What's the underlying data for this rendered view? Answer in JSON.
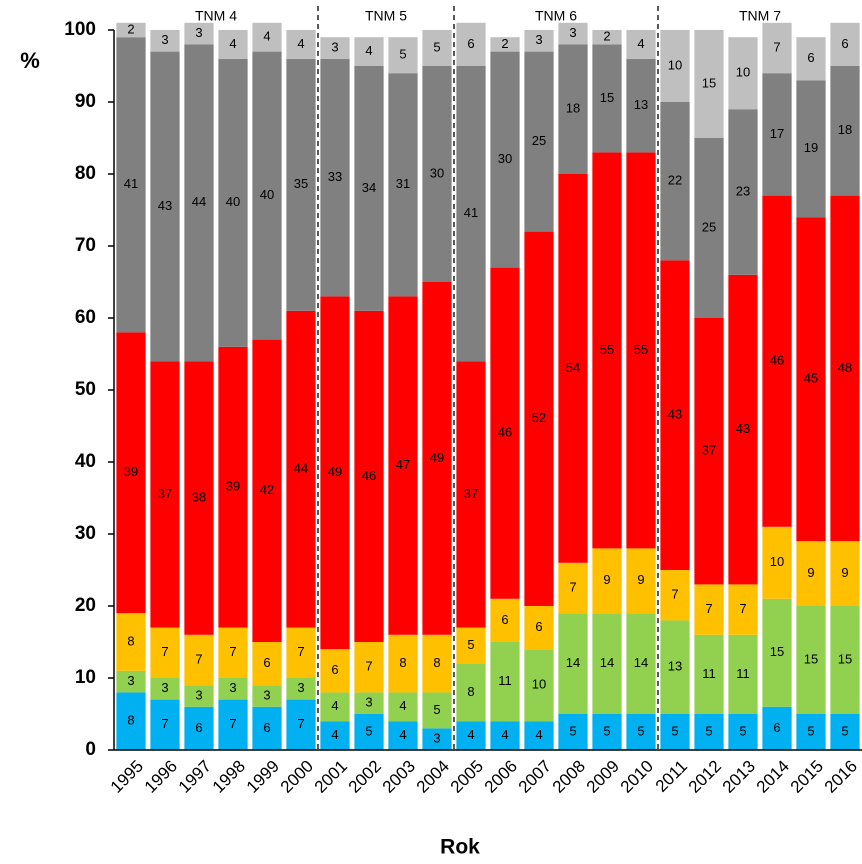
{
  "chart_data": {
    "type": "stacked-bar",
    "y_label": "%",
    "x_label": "Rok",
    "categories": [
      "1995",
      "1996",
      "1997",
      "1998",
      "1999",
      "2000",
      "2001",
      "2002",
      "2003",
      "2004",
      "2005",
      "2006",
      "2007",
      "2008",
      "2009",
      "2010",
      "2011",
      "2012",
      "2013",
      "2014",
      "2015",
      "2016"
    ],
    "series": [
      {
        "color": "#00b0f0",
        "values": [
          8,
          7,
          6,
          7,
          6,
          7,
          4,
          5,
          4,
          3,
          4,
          4,
          4,
          5,
          5,
          5,
          5,
          5,
          5,
          6,
          5,
          5
        ]
      },
      {
        "color": "#92d050",
        "values": [
          3,
          3,
          3,
          3,
          3,
          3,
          4,
          3,
          4,
          5,
          8,
          11,
          10,
          14,
          14,
          14,
          13,
          11,
          11,
          15,
          15,
          15
        ]
      },
      {
        "color": "#ffc000",
        "values": [
          8,
          7,
          7,
          7,
          6,
          7,
          6,
          7,
          8,
          8,
          5,
          6,
          6,
          7,
          9,
          9,
          7,
          7,
          7,
          10,
          9,
          9
        ]
      },
      {
        "color": "#ff0000",
        "values": [
          39,
          37,
          38,
          39,
          42,
          44,
          49,
          46,
          47,
          49,
          37,
          46,
          52,
          54,
          55,
          55,
          43,
          37,
          43,
          46,
          45,
          48
        ]
      },
      {
        "color": "#808080",
        "values": [
          41,
          43,
          44,
          40,
          40,
          35,
          33,
          34,
          31,
          30,
          41,
          30,
          25,
          18,
          15,
          13,
          22,
          25,
          23,
          17,
          19,
          18
        ]
      },
      {
        "color": "#bfbfbf",
        "values": [
          2,
          3,
          3,
          4,
          4,
          4,
          3,
          4,
          5,
          5,
          6,
          2,
          3,
          3,
          2,
          4,
          10,
          15,
          10,
          7,
          6,
          6
        ]
      }
    ],
    "groups": [
      {
        "label": "TNM 4",
        "from": "1995",
        "to": "2000"
      },
      {
        "label": "TNM 5",
        "from": "2001",
        "to": "2004"
      },
      {
        "label": "TNM 6",
        "from": "2005",
        "to": "2010"
      },
      {
        "label": "TNM 7",
        "from": "2011",
        "to": "2016"
      }
    ],
    "ylim": [
      0,
      100
    ],
    "yticks": [
      0,
      10,
      20,
      30,
      40,
      50,
      60,
      70,
      80,
      90,
      100
    ]
  }
}
